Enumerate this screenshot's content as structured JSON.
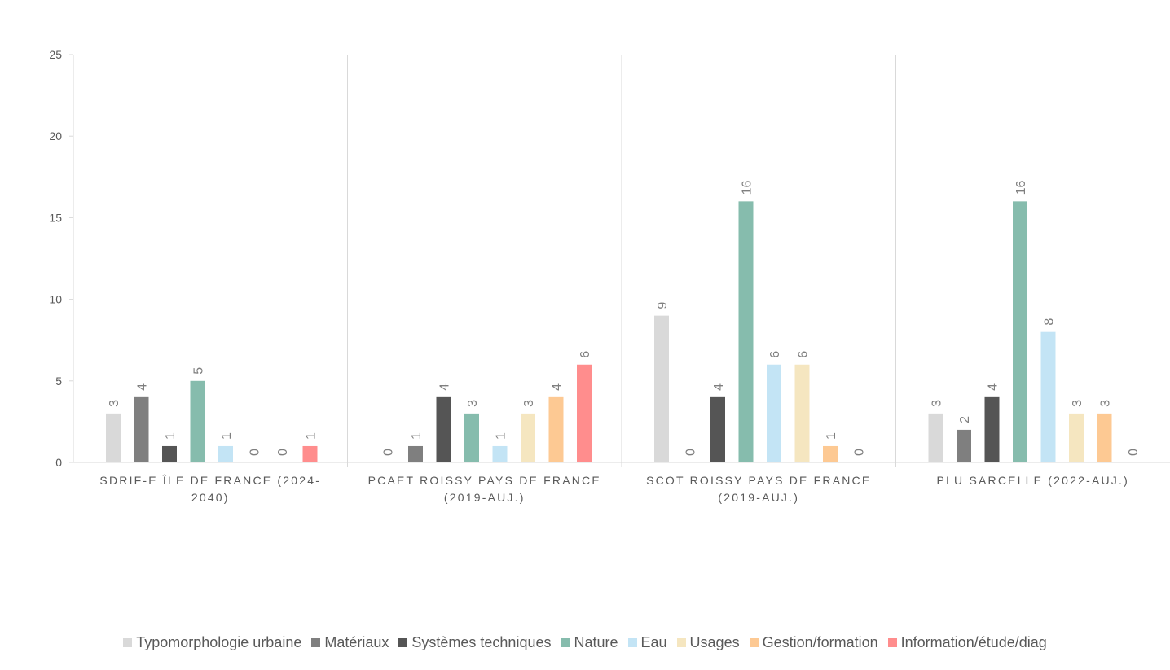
{
  "chart_data": {
    "type": "bar",
    "categories": [
      "SDRIF-E ÎLE DE FRANCE (2024-|2040)",
      "PCAET ROISSY PAYS DE FRANCE|(2019-AUJ.)",
      "SCOT ROISSY PAYS DE FRANCE|(2019-AUJ.)",
      "PLU SARCELLE (2022-AUJ.)"
    ],
    "series": [
      {
        "name": "Typomorphologie urbaine",
        "color": "#d9d9d9",
        "values": [
          3,
          0,
          9,
          3
        ]
      },
      {
        "name": "Matériaux",
        "color": "#7f7f7f",
        "values": [
          4,
          1,
          0,
          2
        ]
      },
      {
        "name": "Systèmes techniques",
        "color": "#555555",
        "values": [
          1,
          4,
          4,
          4
        ]
      },
      {
        "name": "Nature",
        "color": "#86bcad",
        "values": [
          5,
          3,
          16,
          16
        ]
      },
      {
        "name": "Eau",
        "color": "#c3e4f5",
        "values": [
          1,
          1,
          6,
          8
        ]
      },
      {
        "name": "Usages",
        "color": "#f5e6c0",
        "values": [
          0,
          3,
          6,
          3
        ]
      },
      {
        "name": "Gestion/formation",
        "color": "#fdc993",
        "values": [
          0,
          4,
          1,
          3
        ]
      },
      {
        "name": "Information/étude/diag",
        "color": "#ff8d8d",
        "values": [
          1,
          6,
          0,
          0
        ]
      }
    ],
    "yticks": [
      "0",
      "5",
      "10",
      "15",
      "20",
      "25"
    ],
    "ylim": [
      0,
      25
    ],
    "grid": false,
    "data_labels": true,
    "legend_position": "bottom",
    "title": "",
    "xlabel": "",
    "ylabel": ""
  }
}
